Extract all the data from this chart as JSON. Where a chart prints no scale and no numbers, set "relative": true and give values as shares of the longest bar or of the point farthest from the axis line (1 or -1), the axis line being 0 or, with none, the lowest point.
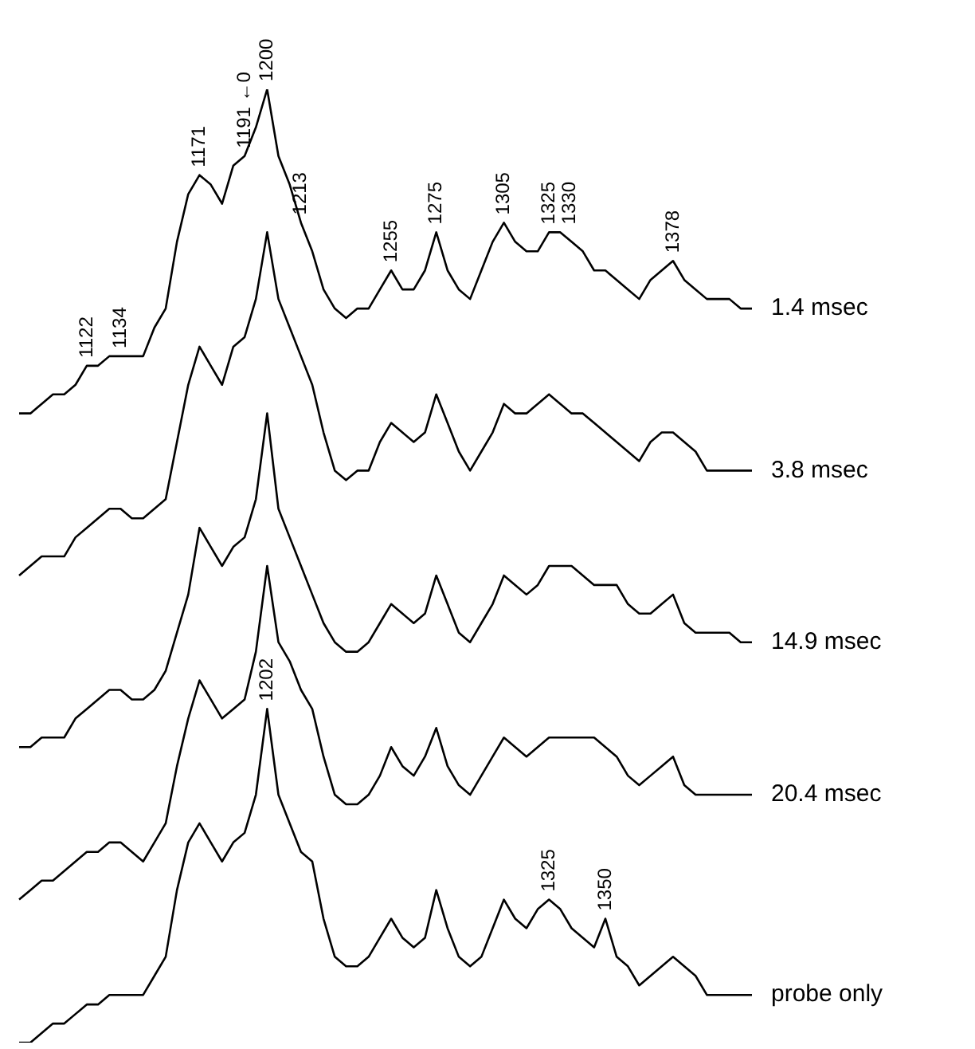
{
  "chart_data": {
    "type": "line",
    "relative": true,
    "marker": "none",
    "line_style": "solid",
    "tick_labels": false,
    "categories": [
      null,
      null,
      null,
      null,
      null,
      null,
      null,
      null,
      null,
      null,
      null,
      null,
      null,
      null,
      null,
      null,
      null,
      null,
      null,
      null,
      null,
      null,
      null,
      null,
      null,
      null,
      null,
      null,
      null,
      null,
      null,
      null,
      null,
      null,
      null,
      null,
      null,
      null,
      null,
      null,
      null,
      null,
      null,
      null,
      null,
      null,
      null,
      null,
      null,
      null,
      null,
      null,
      null,
      null,
      null,
      null,
      null,
      null,
      null,
      null,
      null,
      null,
      null,
      null,
      null,
      null
    ],
    "series": [
      {
        "name": "1.4 msec",
        "color": "#000000",
        "values": [
          0.66,
          0.66,
          0.67,
          0.68,
          0.68,
          0.69,
          0.71,
          0.71,
          0.72,
          0.72,
          0.72,
          0.72,
          0.75,
          0.77,
          0.84,
          0.89,
          0.91,
          0.9,
          0.88,
          0.92,
          0.93,
          0.96,
          1.0,
          0.93,
          0.9,
          0.86,
          0.83,
          0.79,
          0.77,
          0.76,
          0.77,
          0.77,
          0.79,
          0.81,
          0.79,
          0.79,
          0.81,
          0.85,
          0.81,
          0.79,
          0.78,
          0.81,
          0.84,
          0.86,
          0.84,
          0.83,
          0.83,
          0.85,
          0.85,
          0.84,
          0.83,
          0.81,
          0.81,
          0.8,
          0.79,
          0.78,
          0.8,
          0.81,
          0.82,
          0.8,
          0.79,
          0.78,
          0.78,
          0.78,
          0.77,
          0.77
        ]
      },
      {
        "name": "3.8 msec",
        "color": "#000000",
        "values": [
          0.49,
          0.5,
          0.51,
          0.51,
          0.51,
          0.53,
          0.54,
          0.55,
          0.56,
          0.56,
          0.55,
          0.55,
          0.56,
          0.57,
          0.63,
          0.69,
          0.73,
          0.71,
          0.69,
          0.73,
          0.74,
          0.78,
          0.85,
          0.78,
          0.75,
          0.72,
          0.69,
          0.64,
          0.6,
          0.59,
          0.6,
          0.6,
          0.63,
          0.65,
          0.64,
          0.63,
          0.64,
          0.68,
          0.65,
          0.62,
          0.6,
          0.62,
          0.64,
          0.67,
          0.66,
          0.66,
          0.67,
          0.68,
          0.67,
          0.66,
          0.66,
          0.65,
          0.64,
          0.63,
          0.62,
          0.61,
          0.63,
          0.64,
          0.64,
          0.63,
          0.62,
          0.6,
          0.6,
          0.6,
          0.6,
          0.6
        ]
      },
      {
        "name": "14.9 msec",
        "color": "#000000",
        "values": [
          0.31,
          0.31,
          0.32,
          0.32,
          0.32,
          0.34,
          0.35,
          0.36,
          0.37,
          0.37,
          0.36,
          0.36,
          0.37,
          0.39,
          0.43,
          0.47,
          0.54,
          0.52,
          0.5,
          0.52,
          0.53,
          0.57,
          0.66,
          0.56,
          0.53,
          0.5,
          0.47,
          0.44,
          0.42,
          0.41,
          0.41,
          0.42,
          0.44,
          0.46,
          0.45,
          0.44,
          0.45,
          0.49,
          0.46,
          0.43,
          0.42,
          0.44,
          0.46,
          0.49,
          0.48,
          0.47,
          0.48,
          0.5,
          0.5,
          0.5,
          0.49,
          0.48,
          0.48,
          0.48,
          0.46,
          0.45,
          0.45,
          0.46,
          0.47,
          0.44,
          0.43,
          0.43,
          0.43,
          0.43,
          0.42,
          0.42
        ]
      },
      {
        "name": "20.4 msec",
        "color": "#000000",
        "values": [
          0.15,
          0.16,
          0.17,
          0.17,
          0.18,
          0.19,
          0.2,
          0.2,
          0.21,
          0.21,
          0.2,
          0.19,
          0.21,
          0.23,
          0.29,
          0.34,
          0.38,
          0.36,
          0.34,
          0.35,
          0.36,
          0.41,
          0.5,
          0.42,
          0.4,
          0.37,
          0.35,
          0.3,
          0.26,
          0.25,
          0.25,
          0.26,
          0.28,
          0.31,
          0.29,
          0.28,
          0.3,
          0.33,
          0.29,
          0.27,
          0.26,
          0.28,
          0.3,
          0.32,
          0.31,
          0.3,
          0.31,
          0.32,
          0.32,
          0.32,
          0.32,
          0.32,
          0.31,
          0.3,
          0.28,
          0.27,
          0.28,
          0.29,
          0.3,
          0.27,
          0.26,
          0.26,
          0.26,
          0.26,
          0.26,
          0.26
        ]
      },
      {
        "name": "probe only",
        "color": "#000000",
        "values": [
          0,
          0,
          0.01,
          0.02,
          0.02,
          0.03,
          0.04,
          0.04,
          0.05,
          0.05,
          0.05,
          0.05,
          0.07,
          0.09,
          0.16,
          0.21,
          0.23,
          0.21,
          0.19,
          0.21,
          0.22,
          0.26,
          0.35,
          0.26,
          0.23,
          0.2,
          0.19,
          0.13,
          0.09,
          0.08,
          0.08,
          0.09,
          0.11,
          0.13,
          0.11,
          0.1,
          0.11,
          0.16,
          0.12,
          0.09,
          0.08,
          0.09,
          0.12,
          0.15,
          0.13,
          0.12,
          0.14,
          0.15,
          0.14,
          0.12,
          0.11,
          0.1,
          0.13,
          0.09,
          0.08,
          0.06,
          0.07,
          0.08,
          0.09,
          0.08,
          0.07,
          0.05,
          0.05,
          0.05,
          0.05,
          0.05
        ]
      }
    ],
    "annotations": [
      "1122",
      "1134",
      "1171",
      "1191 ←0",
      "1200",
      "1213",
      "1255",
      "1275",
      "1305",
      "1325",
      "1330",
      "1378",
      "1202",
      "1325",
      "1350"
    ]
  }
}
